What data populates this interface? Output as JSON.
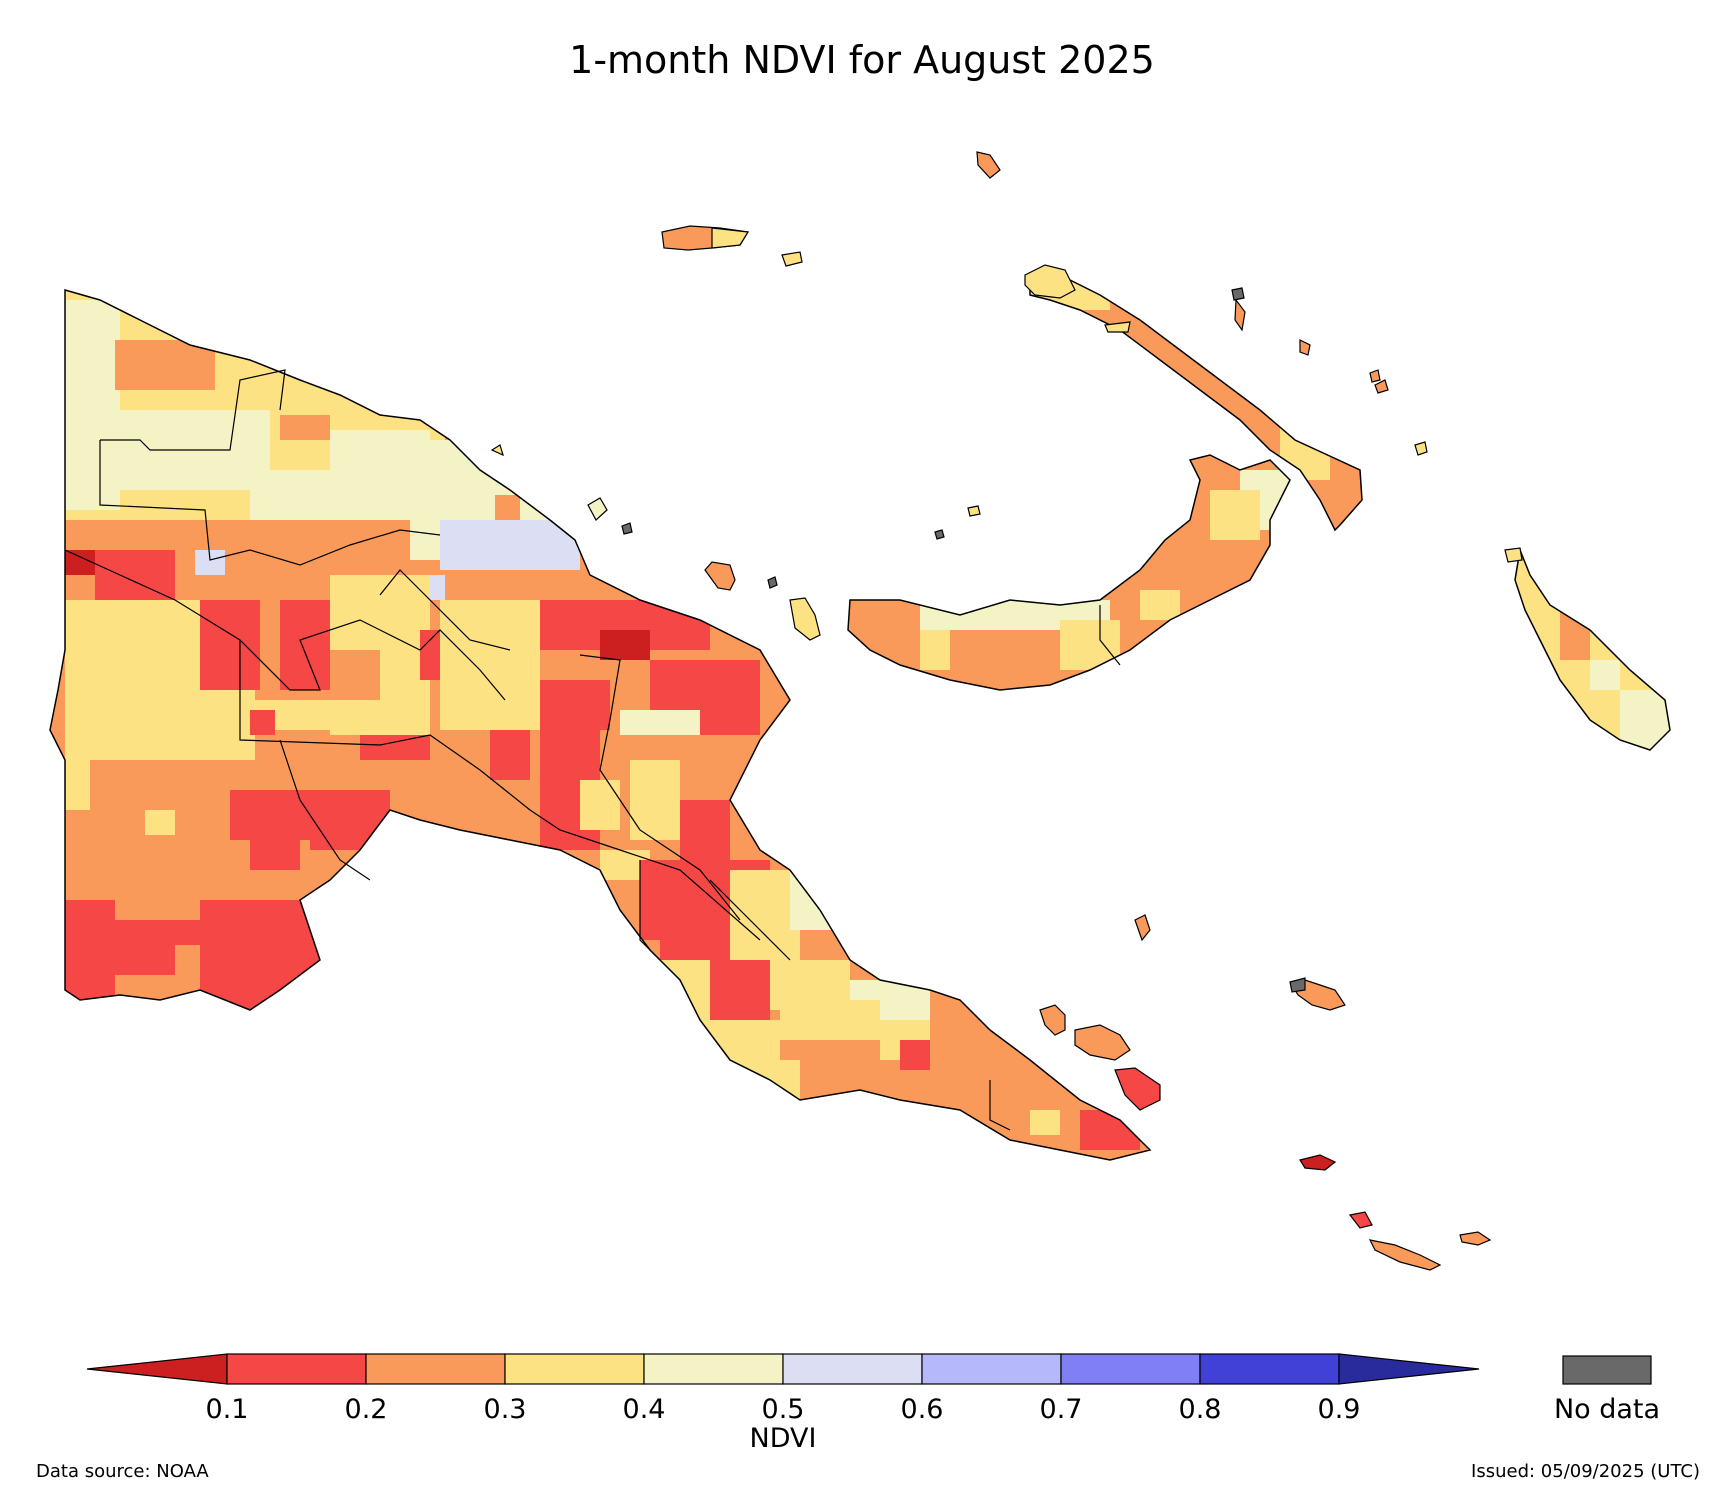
{
  "title": "1-month NDVI for August 2025",
  "colorbar": {
    "label": "NDVI",
    "ticks": [
      "0.1",
      "0.2",
      "0.3",
      "0.4",
      "0.5",
      "0.6",
      "0.7",
      "0.8",
      "0.9"
    ],
    "colors": {
      "below_0_1": "#cc1f1f",
      "0.1-0.2": "#f64747",
      "0.2-0.3": "#f99a5b",
      "0.3-0.4": "#fce283",
      "0.4-0.5": "#f4f3c5",
      "0.5-0.6": "#dcdff3",
      "0.6-0.7": "#b6b8fc",
      "0.7-0.8": "#8080f4",
      "0.8-0.9": "#4141d7",
      "above_0_9": "#292b9c"
    },
    "no_data_label": "No data",
    "no_data_color": "#696969"
  },
  "footer": {
    "source": "Data source: NOAA",
    "issued": "Issued: 05/09/2025 (UTC)"
  }
}
